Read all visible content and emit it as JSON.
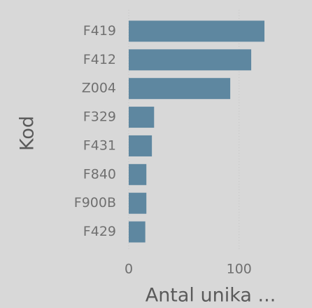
{
  "chart_data": {
    "type": "bar",
    "orientation": "horizontal",
    "categories": [
      "F419",
      "F412",
      "Z004",
      "F329",
      "F431",
      "F840",
      "F900B",
      "F429"
    ],
    "values": [
      123,
      111,
      92,
      23,
      21,
      16,
      16,
      15
    ],
    "color": "#5e87a0",
    "xlim": [
      0,
      142
    ],
    "xticks": [
      0,
      100
    ],
    "x_label": "Antal unika ...",
    "y_label": "Kod",
    "grid": true
  }
}
